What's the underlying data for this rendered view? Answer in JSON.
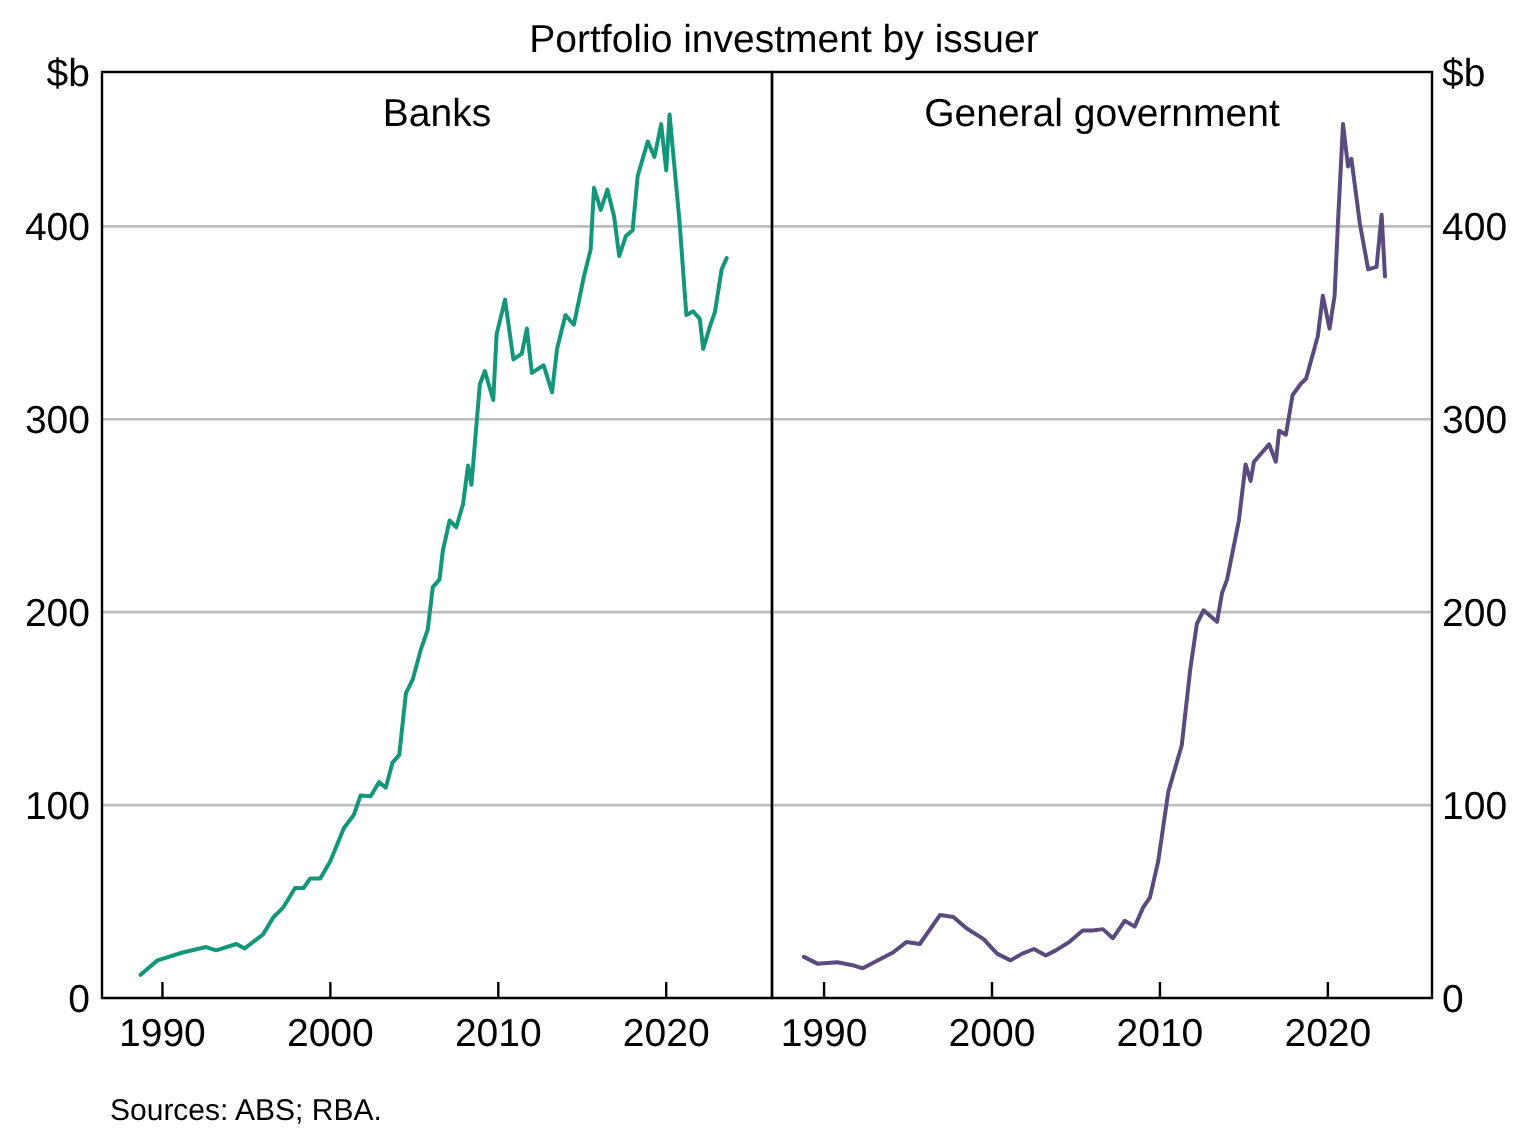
{
  "chart_data": [
    {
      "type": "line",
      "title": "Banks",
      "ylabel": "$b",
      "annotations": [
        "Portfolio investment by issuer"
      ],
      "xlim": [
        1986.4,
        2026.3
      ],
      "xticks": [
        {
          "value": 1990,
          "label": "1990"
        },
        {
          "value": 2000,
          "label": "2000"
        },
        {
          "value": 2010,
          "label": "2010"
        },
        {
          "value": 2020,
          "label": "2020"
        }
      ],
      "ylim": [
        0,
        480
      ],
      "yticks": [
        0,
        100,
        200,
        300,
        400
      ],
      "grid": "y",
      "series": [
        {
          "color": "#12977a",
          "x": [
            1988.7,
            1989.7,
            1991.2,
            1992.6,
            1993.2,
            1994.4,
            1994.9,
            1996.0,
            1996.6,
            1997.2,
            1997.9,
            1998.4,
            1998.8,
            1999.4,
            2000.0,
            2000.4,
            2000.8,
            2001.4,
            2001.8,
            2002.4,
            2002.9,
            2003.3,
            2003.7,
            2004.1,
            2004.5,
            2004.9,
            2005.4,
            2005.8,
            2006.1,
            2006.5,
            2006.7,
            2007.1,
            2007.5,
            2007.9,
            2008.2,
            2008.4,
            2008.9,
            2009.2,
            2009.7,
            2009.9,
            2010.4,
            2010.9,
            2011.4,
            2011.7,
            2012.0,
            2012.7,
            2013.2,
            2013.5,
            2014.0,
            2014.5,
            2015.1,
            2015.5,
            2015.7,
            2016.1,
            2016.5,
            2016.9,
            2017.2,
            2017.6,
            2018.0,
            2018.3,
            2018.9,
            2019.3,
            2019.7,
            2020.0,
            2020.2,
            2020.6,
            2020.8,
            2021.2,
            2021.6,
            2022.0,
            2022.2,
            2022.6,
            2022.9,
            2023.3,
            2023.6
          ],
          "values": [
            12,
            19.5,
            23.6,
            26.4,
            24.7,
            28,
            25.7,
            33,
            41.8,
            47,
            57,
            57,
            62,
            62,
            71,
            79.5,
            88,
            95,
            105,
            104.6,
            112,
            109,
            122,
            126,
            158,
            165,
            181,
            191,
            213,
            217,
            232,
            247.5,
            244,
            256,
            276,
            266,
            318,
            325,
            310,
            344,
            362,
            331,
            334,
            347,
            324,
            328,
            314,
            336.5,
            354,
            349,
            374,
            388,
            420,
            408.5,
            419,
            405,
            384.6,
            395,
            398,
            426,
            444,
            436,
            453,
            429,
            458,
            420.6,
            401.7,
            354,
            356,
            352,
            336.5,
            348,
            355.5,
            377.7,
            383.5
          ]
        }
      ]
    },
    {
      "type": "line",
      "title": "General government",
      "ylabel": "$b",
      "annotations": [
        "Sources: ABS; RBA."
      ],
      "xlim": [
        1986.9,
        2026.2
      ],
      "xticks": [
        {
          "value": 1990,
          "label": "1990"
        },
        {
          "value": 2000,
          "label": "2000"
        },
        {
          "value": 2010,
          "label": "2010"
        },
        {
          "value": 2020,
          "label": "2020"
        }
      ],
      "ylim": [
        0,
        480
      ],
      "yticks": [
        0,
        100,
        200,
        300,
        400
      ],
      "grid": "y",
      "series": [
        {
          "color": "#5b4a7e",
          "x": [
            1988.8,
            1989.6,
            1990.8,
            1991.7,
            1992.3,
            1993.3,
            1994.1,
            1994.9,
            1995.7,
            1996.9,
            1997.7,
            1998.5,
            1999.5,
            2000.3,
            2001.1,
            2001.8,
            2002.5,
            2003.2,
            2003.8,
            2004.6,
            2005.4,
            2006.0,
            2006.6,
            2007.2,
            2007.9,
            2008.5,
            2009.0,
            2009.4,
            2009.9,
            2010.5,
            2011.3,
            2011.8,
            2012.2,
            2012.6,
            2013.4,
            2013.7,
            2014.0,
            2014.7,
            2015.1,
            2015.4,
            2015.6,
            2016.5,
            2016.9,
            2017.1,
            2017.5,
            2017.9,
            2018.4,
            2018.7,
            2019.4,
            2019.7,
            2020.1,
            2020.4,
            2020.6,
            2020.9,
            2021.2,
            2021.4,
            2021.9,
            2022.4,
            2022.9,
            2023.2,
            2023.4
          ],
          "values": [
            21.3,
            17.8,
            18.5,
            17,
            15.4,
            20,
            23.6,
            29,
            28,
            43,
            42,
            36,
            30.5,
            23,
            19.5,
            23,
            25.4,
            22,
            24.7,
            29,
            35,
            35,
            35.7,
            31,
            40,
            37,
            47,
            52,
            71,
            107,
            131,
            170,
            194,
            201,
            195,
            210,
            217,
            247.5,
            276.6,
            268,
            278,
            287,
            278,
            294,
            292,
            312.6,
            318.5,
            321,
            343,
            364,
            347,
            364,
            401.7,
            453,
            431,
            435,
            401.7,
            377.7,
            379,
            406,
            374
          ]
        }
      ]
    }
  ]
}
